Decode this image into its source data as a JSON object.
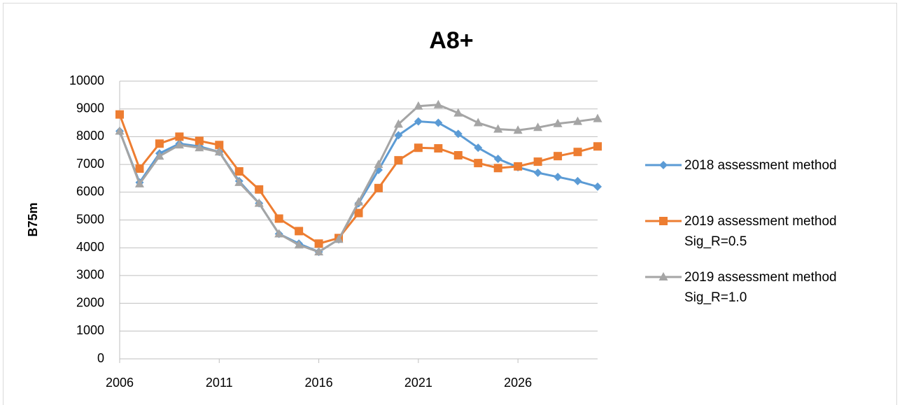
{
  "chart_data": {
    "type": "line",
    "title": "A8+",
    "y_label": "B75m",
    "x": [
      2006,
      2007,
      2008,
      2009,
      2010,
      2011,
      2012,
      2013,
      2014,
      2015,
      2016,
      2017,
      2018,
      2019,
      2020,
      2021,
      2022,
      2023,
      2024,
      2025,
      2026,
      2027,
      2028,
      2029,
      2030
    ],
    "xlim": [
      2006,
      2030
    ],
    "xticks": [
      2006,
      2011,
      2016,
      2021,
      2026
    ],
    "ylim": [
      0,
      10000
    ],
    "yticks": [
      0,
      1000,
      2000,
      3000,
      4000,
      5000,
      6000,
      7000,
      8000,
      9000,
      10000
    ],
    "grid": true,
    "legend": "right",
    "series": [
      {
        "name": "2018 assessment method",
        "color": "#5b9bd5",
        "marker": "diamond",
        "values": [
          8200,
          6350,
          7400,
          7750,
          7650,
          7450,
          6400,
          5600,
          4500,
          4150,
          3850,
          4300,
          5600,
          6800,
          8050,
          8550,
          8500,
          8100,
          7600,
          7200,
          6900,
          6700,
          6550,
          6400,
          6200
        ]
      },
      {
        "name": "2019 assessment method Sig_R=0.5",
        "color": "#ed7d31",
        "marker": "square",
        "values": [
          8800,
          6850,
          7750,
          8000,
          7850,
          7700,
          6750,
          6100,
          5050,
          4600,
          4150,
          4350,
          5250,
          6150,
          7150,
          7600,
          7580,
          7330,
          7050,
          6870,
          6930,
          7100,
          7300,
          7450,
          7650
        ]
      },
      {
        "name": "2019 assessment method Sig_R=1.0",
        "color": "#a5a5a5",
        "marker": "triangle",
        "values": [
          8200,
          6300,
          7300,
          7700,
          7600,
          7450,
          6350,
          5600,
          4500,
          4100,
          3850,
          4300,
          5650,
          7000,
          8450,
          9100,
          9150,
          8850,
          8500,
          8270,
          8230,
          8330,
          8470,
          8550,
          8650
        ]
      }
    ]
  }
}
